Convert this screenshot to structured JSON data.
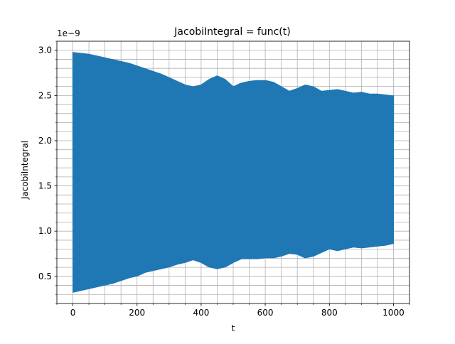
{
  "chart_data": {
    "type": "line",
    "title": "JacobiIntegral = func(t)",
    "xlabel": "t",
    "ylabel": "JacobiIntegral",
    "offset_text": "1e−9",
    "xlim": [
      -50,
      1050
    ],
    "ylim": [
      0.2,
      3.1
    ],
    "x_ticks": [
      0,
      200,
      400,
      600,
      800,
      1000
    ],
    "x_tick_labels": [
      "0",
      "200",
      "400",
      "600",
      "800",
      "1000"
    ],
    "y_ticks": [
      0.5,
      1.0,
      1.5,
      2.0,
      2.5,
      3.0
    ],
    "y_tick_labels": [
      "0.5",
      "1.0",
      "1.5",
      "2.0",
      "2.5",
      "3.0"
    ],
    "x_minor_step": 50,
    "y_minor_step": 0.1,
    "grid": true,
    "grid_which": "both",
    "line_color": "#1f77b4",
    "series": [
      {
        "x": [
          0,
          25,
          50,
          75,
          100,
          125,
          150,
          175,
          200,
          225,
          250,
          275,
          300,
          325,
          350,
          375,
          400,
          425,
          450,
          475,
          500,
          525,
          550,
          575,
          600,
          625,
          650,
          675,
          700,
          725,
          750,
          775,
          800,
          825,
          850,
          875,
          900,
          925,
          950,
          975,
          1000
        ],
        "max": [
          2.98,
          2.97,
          2.96,
          2.94,
          2.92,
          2.9,
          2.88,
          2.86,
          2.83,
          2.8,
          2.77,
          2.74,
          2.7,
          2.66,
          2.62,
          2.6,
          2.62,
          2.68,
          2.72,
          2.68,
          2.6,
          2.64,
          2.66,
          2.67,
          2.67,
          2.65,
          2.6,
          2.55,
          2.58,
          2.62,
          2.6,
          2.55,
          2.56,
          2.57,
          2.55,
          2.53,
          2.54,
          2.52,
          2.52,
          2.51,
          2.5
        ],
        "min": [
          0.32,
          0.34,
          0.36,
          0.38,
          0.4,
          0.42,
          0.45,
          0.48,
          0.5,
          0.54,
          0.56,
          0.58,
          0.6,
          0.63,
          0.65,
          0.68,
          0.65,
          0.6,
          0.58,
          0.6,
          0.65,
          0.69,
          0.69,
          0.69,
          0.7,
          0.7,
          0.72,
          0.75,
          0.74,
          0.7,
          0.72,
          0.76,
          0.8,
          0.78,
          0.8,
          0.82,
          0.81,
          0.82,
          0.83,
          0.84,
          0.86
        ]
      }
    ]
  }
}
